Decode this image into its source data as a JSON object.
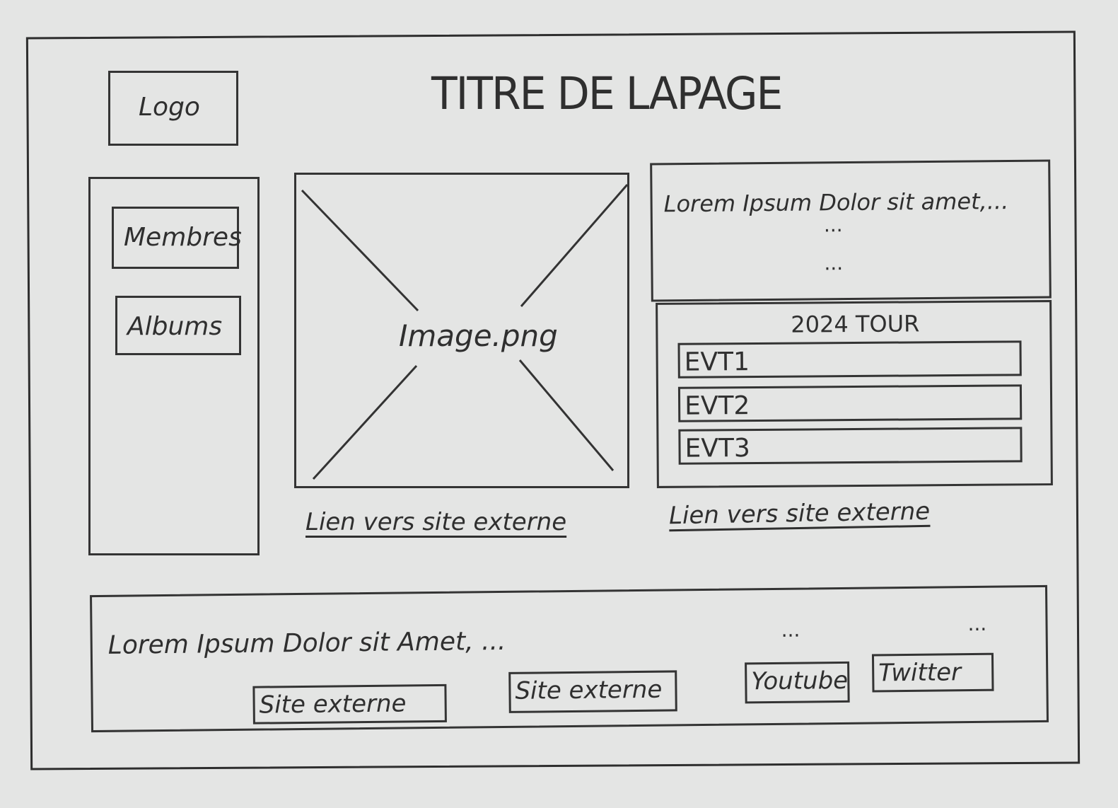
{
  "page": {
    "title": "TITRE DE LAPAGE",
    "logo_label": "Logo"
  },
  "sidebar": {
    "items": [
      {
        "label": "Membres"
      },
      {
        "label": "Albums"
      }
    ]
  },
  "main": {
    "image_label": "Image.png",
    "image_link": "Lien vers site externe"
  },
  "aside": {
    "text": "Lorem Ipsum Dolor sit amet,...",
    "ellipsis_1": "...",
    "ellipsis_2": "...",
    "tour": {
      "title": "2024 TOUR",
      "events": [
        {
          "label": "EVT1"
        },
        {
          "label": "EVT2"
        },
        {
          "label": "EVT3"
        }
      ]
    },
    "link": "Lien vers site externe"
  },
  "footer": {
    "text": "Lorem Ipsum Dolor sit Amet, ...",
    "ellipsis_1": "...",
    "ellipsis_2": "...",
    "buttons": [
      {
        "label": "Site externe"
      },
      {
        "label": "Site externe"
      },
      {
        "label": "Youtube"
      },
      {
        "label": "Twitter"
      }
    ]
  }
}
